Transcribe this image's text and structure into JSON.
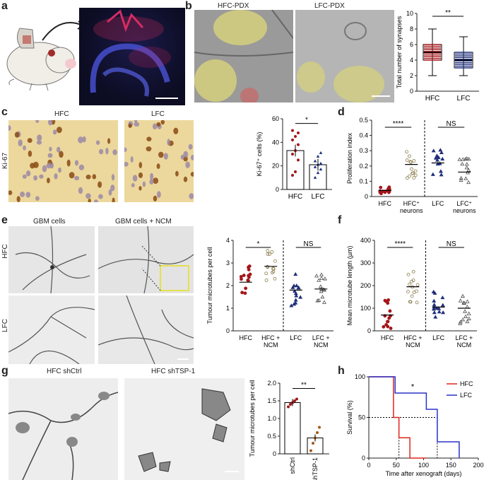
{
  "figure": {
    "panel_letters": [
      "a",
      "b",
      "c",
      "d",
      "e",
      "f",
      "g",
      "h"
    ],
    "b": {
      "img_left_title": "HFC-PDX",
      "img_right_title": "LFC-PDX"
    },
    "c": {
      "img_left_title": "HFC",
      "img_right_title": "LFC",
      "side_label": "Ki-67"
    },
    "e": {
      "img_left_title": "GBM cells",
      "img_right_title": "GBM cells + NCM",
      "row1": "HFC",
      "row2": "LFC"
    },
    "g": {
      "img_left_title": "HFC shCtrl",
      "img_right_title": "HFC shTSP-1"
    }
  },
  "chart_data": [
    {
      "id": "b",
      "type": "box",
      "ylabel": "Total number of synapses",
      "ylim": [
        0,
        10
      ],
      "yticks": [
        0,
        2,
        4,
        6,
        8,
        10
      ],
      "categories": [
        "HFC",
        "LFC"
      ],
      "boxes": [
        {
          "min": 2,
          "q1": 4,
          "median": 5,
          "q3": 6,
          "max": 8
        },
        {
          "min": 2,
          "q1": 3,
          "median": 4,
          "q3": 5,
          "max": 7
        }
      ],
      "significance": "**"
    },
    {
      "id": "c",
      "type": "bar",
      "ylabel": "Ki-67⁺ cells (%)",
      "ylim": [
        0,
        60
      ],
      "yticks": [
        0,
        20,
        40,
        60
      ],
      "categories": [
        "HFC",
        "LFC"
      ],
      "values": [
        33,
        21
      ],
      "points": [
        [
          12,
          15,
          25,
          30,
          33,
          38,
          42,
          45,
          48,
          50
        ],
        [
          10,
          14,
          17,
          19,
          21,
          22,
          24,
          28,
          31
        ]
      ],
      "significance": "*"
    },
    {
      "id": "d",
      "type": "scatter",
      "ylabel": "Proliferation index",
      "ylim": [
        0,
        0.5
      ],
      "yticks": [
        "0",
        "0.1",
        "0.2",
        "0.3",
        "0.4",
        "0.5"
      ],
      "categories": [
        "HFC",
        "HFC⁺\nneurons",
        "LFC",
        "LFC⁺\nneurons"
      ],
      "means": [
        0.04,
        0.21,
        0.22,
        0.16
      ],
      "significance": [
        "****",
        "NS"
      ]
    },
    {
      "id": "e",
      "type": "scatter",
      "ylabel": "Tumour microtubes per cell",
      "ylim": [
        0,
        4
      ],
      "yticks": [
        0,
        1,
        2,
        3,
        4
      ],
      "categories": [
        "HFC",
        "HFC +\nNCM",
        "LFC",
        "LFC +\nNCM"
      ],
      "means": [
        2.15,
        2.85,
        1.8,
        1.85
      ],
      "significance": [
        "*",
        "NS"
      ]
    },
    {
      "id": "f",
      "type": "scatter",
      "ylabel": "Mean microtube length (µm)",
      "ylim": [
        0,
        400
      ],
      "yticks": [
        0,
        100,
        200,
        300,
        400
      ],
      "categories": [
        "HFC",
        "HFC +\nNCM",
        "LFC",
        "LFC +\nNCM"
      ],
      "means": [
        70,
        195,
        105,
        100
      ],
      "significance": [
        "****",
        "NS"
      ]
    },
    {
      "id": "g",
      "type": "bar",
      "ylabel": "Tumour microtubes per cell",
      "ylim": [
        0,
        2.0
      ],
      "yticks": [
        "0",
        "0.5",
        "1.0",
        "1.5",
        "2.0"
      ],
      "categories": [
        "shCtrl",
        "shTSP-1"
      ],
      "values": [
        1.45,
        0.45
      ],
      "significance": "**"
    },
    {
      "id": "h",
      "type": "line",
      "ylabel": "Survival (%)",
      "xlabel": "Time after xenograft (days)",
      "xlim": [
        0,
        200
      ],
      "ylim": [
        0,
        100
      ],
      "xticks": [
        0,
        50,
        100,
        150,
        200
      ],
      "yticks": [
        0,
        50,
        100
      ],
      "series": [
        {
          "name": "HFC",
          "color": "#e0251c",
          "x": [
            0,
            45,
            45,
            55,
            55,
            75,
            75,
            105,
            105
          ],
          "y": [
            100,
            100,
            50,
            50,
            25,
            25,
            0,
            0,
            0
          ]
        },
        {
          "name": "LFC",
          "color": "#2a33c9",
          "x": [
            0,
            48,
            48,
            105,
            105,
            125,
            125,
            165,
            165
          ],
          "y": [
            100,
            100,
            80,
            80,
            60,
            60,
            20,
            20,
            0
          ]
        }
      ],
      "significance": "*"
    }
  ]
}
